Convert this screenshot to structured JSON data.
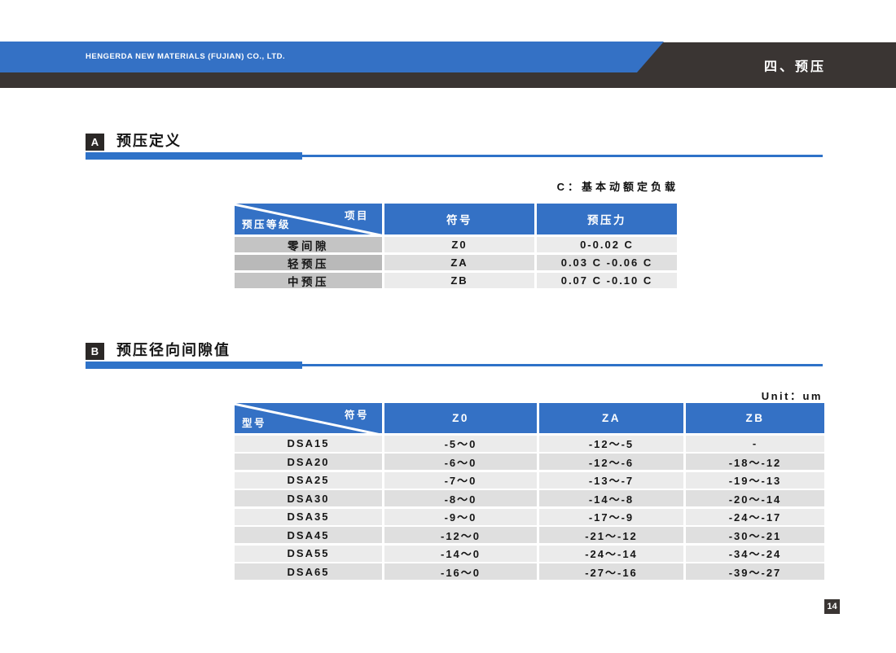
{
  "colors": {
    "blue": "#3471c5",
    "dark": "#3a3533",
    "badge-dark": "#2b2826",
    "rule-blue": "#2e72c8"
  },
  "header": {
    "company": "HENGERDA NEW MATERIALS (FUJIAN) CO., LTD.",
    "chapter": "四、预压"
  },
  "section_a": {
    "badge": "A",
    "title": "预压定义"
  },
  "section_b": {
    "badge": "B",
    "title": "预压径向间隙值"
  },
  "notes": {
    "c_definition": "C：基本动额定负载",
    "unit": "Unit：um"
  },
  "table_a": {
    "corner_top_right": "项目",
    "corner_bottom_left": "预压等级",
    "columns": [
      "符号",
      "预压力"
    ],
    "rows": [
      {
        "level": "零间隙",
        "symbol": "Z0",
        "force": "0-0.02 C"
      },
      {
        "level": "轻预压",
        "symbol": "ZA",
        "force": "0.03 C -0.06 C"
      },
      {
        "level": "中预压",
        "symbol": "ZB",
        "force": "0.07 C -0.10 C"
      }
    ]
  },
  "table_b": {
    "corner_top_right": "符号",
    "corner_bottom_left": "型号",
    "columns": [
      "Z0",
      "ZA",
      "ZB"
    ],
    "rows": [
      {
        "model": "DSA15",
        "z0": "-5～0",
        "za": "-12～-5",
        "zb": "-"
      },
      {
        "model": "DSA20",
        "z0": "-6～0",
        "za": "-12～-6",
        "zb": "-18～-12"
      },
      {
        "model": "DSA25",
        "z0": "-7～0",
        "za": "-13～-7",
        "zb": "-19～-13"
      },
      {
        "model": "DSA30",
        "z0": "-8～0",
        "za": "-14～-8",
        "zb": "-20～-14"
      },
      {
        "model": "DSA35",
        "z0": "-9～0",
        "za": "-17～-9",
        "zb": "-24～-17"
      },
      {
        "model": "DSA45",
        "z0": "-12～0",
        "za": "-21～-12",
        "zb": "-30～-21"
      },
      {
        "model": "DSA55",
        "z0": "-14～0",
        "za": "-24～-14",
        "zb": "-34～-24"
      },
      {
        "model": "DSA65",
        "z0": "-16～0",
        "za": "-27～-16",
        "zb": "-39～-27"
      }
    ]
  },
  "page_number": "14"
}
